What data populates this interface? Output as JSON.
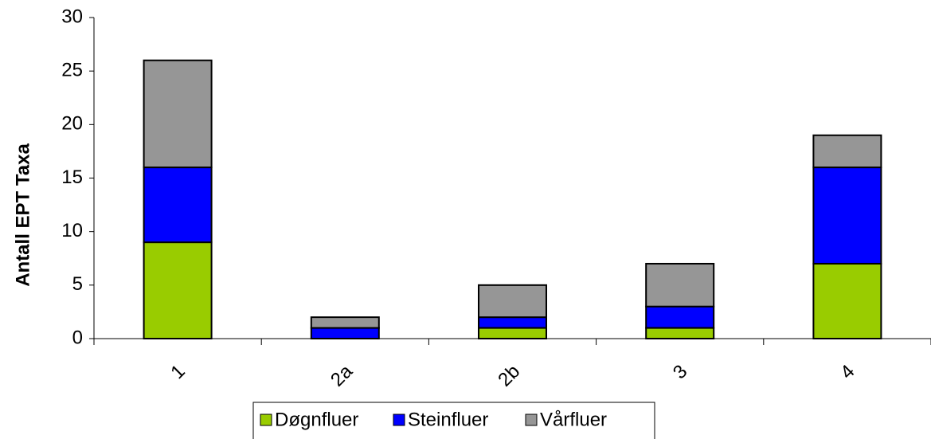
{
  "chart_data": {
    "type": "stacked_bar",
    "ylabel": "Antall EPT Taxa",
    "categories": [
      "1",
      "2a",
      "2b",
      "3",
      "4"
    ],
    "series": [
      {
        "name": "Døgnfluer",
        "color": "#99cc00",
        "values": [
          9,
          0,
          1,
          1,
          7
        ]
      },
      {
        "name": "Steinfluer",
        "color": "#0000ff",
        "values": [
          7,
          1,
          1,
          2,
          9
        ]
      },
      {
        "name": "Vårfluer",
        "color": "#969696",
        "values": [
          10,
          1,
          3,
          4,
          3
        ]
      }
    ],
    "ylim": [
      0,
      30
    ],
    "yticks": [
      0,
      5,
      10,
      15,
      20,
      25,
      30
    ],
    "legend": "bottom"
  }
}
